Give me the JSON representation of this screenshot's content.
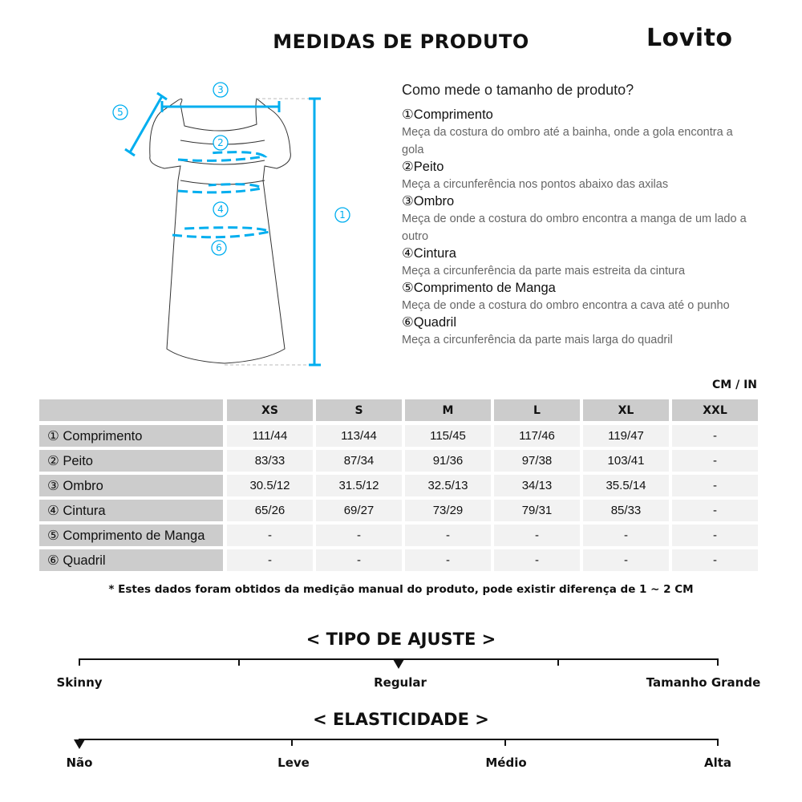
{
  "header": {
    "title": "MEDIDAS DE PRODUTO",
    "logo": "Lovito"
  },
  "diagram": {
    "accent": "#00aeef",
    "labels": [
      "①",
      "②",
      "③",
      "④",
      "⑤",
      "⑥"
    ]
  },
  "guide": {
    "question": "Como mede o tamanho de produto?",
    "items": [
      {
        "title": "①Comprimento",
        "desc": "Meça da costura do ombro até a bainha, onde a gola encontra a gola"
      },
      {
        "title": "②Peito",
        "desc": "Meça a circunferência nos pontos abaixo das axilas"
      },
      {
        "title": "③Ombro",
        "desc": "Meça de onde a costura do ombro encontra a manga de um lado a outro"
      },
      {
        "title": "④Cintura",
        "desc": "Meça a circunferência da parte mais estreita da cintura"
      },
      {
        "title": "⑤Comprimento de Manga",
        "desc": "Meça de onde a costura do ombro encontra a cava até o punho"
      },
      {
        "title": "⑥Quadril",
        "desc": "Meça a circunferência da parte mais larga do quadril"
      }
    ]
  },
  "table": {
    "unit": "CM / IN",
    "sizes": [
      "XS",
      "S",
      "M",
      "L",
      "XL",
      "XXL"
    ],
    "rows": [
      {
        "label": "① Comprimento",
        "values": [
          "111/44",
          "113/44",
          "115/45",
          "117/46",
          "119/47",
          "-"
        ]
      },
      {
        "label": "② Peito",
        "values": [
          "83/33",
          "87/34",
          "91/36",
          "97/38",
          "103/41",
          "-"
        ]
      },
      {
        "label": "③ Ombro",
        "values": [
          "30.5/12",
          "31.5/12",
          "32.5/13",
          "34/13",
          "35.5/14",
          "-"
        ]
      },
      {
        "label": "④ Cintura",
        "values": [
          "65/26",
          "69/27",
          "73/29",
          "79/31",
          "85/33",
          "-"
        ]
      },
      {
        "label": "⑤ Comprimento de Manga",
        "values": [
          "-",
          "-",
          "-",
          "-",
          "-",
          "-"
        ]
      },
      {
        "label": "⑥ Quadril",
        "values": [
          "-",
          "-",
          "-",
          "-",
          "-",
          "-"
        ]
      }
    ]
  },
  "note": "* Estes dados foram obtidos da medição manual do produto, pode existir diferença de 1 ~ 2 CM",
  "fit": {
    "title": "< TIPO DE AJUSTE >",
    "labels": [
      "Skinny",
      "Regular",
      "Tamanho Grande"
    ],
    "selected": "Regular"
  },
  "elasticity": {
    "title": "< ELASTICIDADE >",
    "labels": [
      "Não",
      "Leve",
      "Médio",
      "Alta"
    ],
    "selected": "Não"
  }
}
